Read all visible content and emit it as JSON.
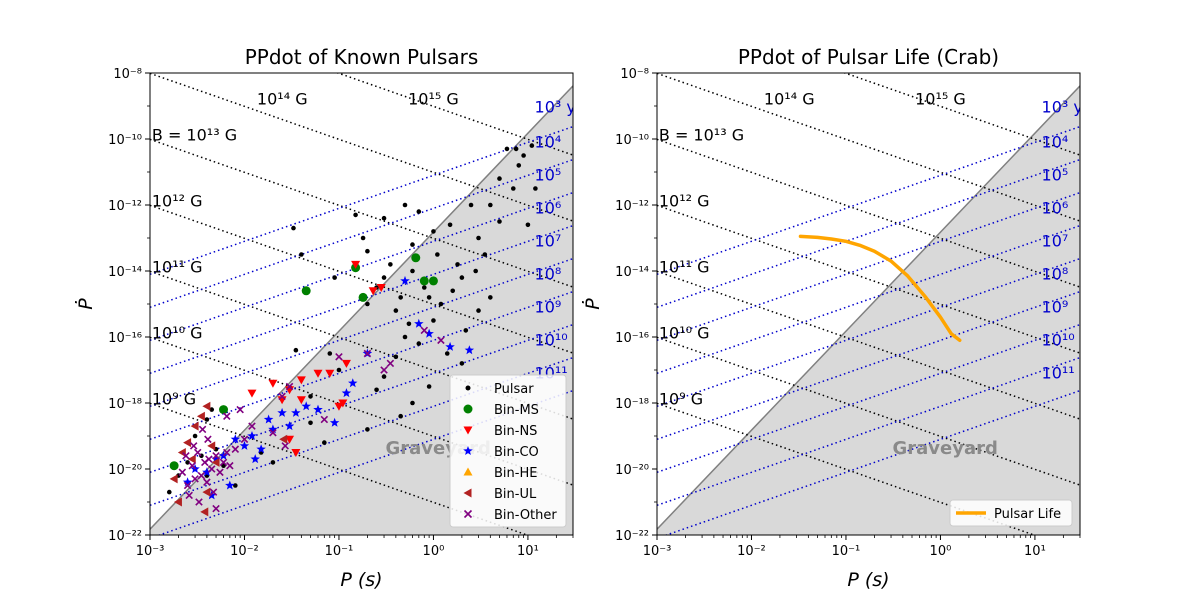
{
  "chart_data": [
    {
      "type": "scatter",
      "title": "PPdot of Known Pulsars",
      "xlabel": "P (s)",
      "ylabel": "Ṗ",
      "xscale": "log",
      "yscale": "log",
      "xlim": [
        0.001,
        30
      ],
      "ylim": [
        1e-22,
        1e-08
      ],
      "x_tick_labels": [
        "10⁻³",
        "10⁻²",
        "10⁻¹",
        "10⁰",
        "10¹"
      ],
      "y_tick_labels": [
        "10⁻²²",
        "10⁻²⁰",
        "10⁻¹⁸",
        "10⁻¹⁶",
        "10⁻¹⁴",
        "10⁻¹²",
        "10⁻¹⁰",
        "10⁻⁸"
      ],
      "region_label": "Graveyard",
      "legend_position": "lower right",
      "field_lines_G": [
        1000000000.0,
        10000000000.0,
        100000000000.0,
        1000000000000.0,
        10000000000000.0,
        100000000000000.0,
        1000000000000000.0
      ],
      "field_labels": [
        "10⁹ G",
        "10¹⁰ G",
        "10¹¹ G",
        "10¹² G",
        "B = 10¹³ G",
        "10¹⁴ G",
        "10¹⁵ G"
      ],
      "age_lines_yr": [
        1000.0,
        10000.0,
        100000.0,
        1000000.0,
        10000000.0,
        100000000.0,
        1000000000.0,
        10000000000.0,
        100000000000.0
      ],
      "age_labels": [
        "10³ yr",
        "10⁴",
        "10⁵",
        "10⁶",
        "10⁷",
        "10⁸",
        "10⁹",
        "10¹⁰",
        "10¹¹"
      ],
      "series": [
        {
          "name": "Pulsar",
          "marker": "circle",
          "color": "#000000",
          "points": [
            [
              0.005,
              -19.4
            ],
            [
              0.04,
              -13.5
            ],
            [
              0.09,
              -14.2
            ],
            [
              0.033,
              -12.7
            ],
            [
              0.15,
              -12.3
            ],
            [
              0.18,
              -13
            ],
            [
              0.3,
              -12.4
            ],
            [
              0.5,
              -12
            ],
            [
              0.7,
              -12.2
            ],
            [
              1,
              -12.8
            ],
            [
              1.5,
              -12.6
            ],
            [
              2.5,
              -12
            ],
            [
              3,
              -13
            ],
            [
              5,
              -12.5
            ],
            [
              7,
              -11.5
            ],
            [
              8,
              -10.8
            ],
            [
              6,
              -10.3
            ],
            [
              9,
              -10.5
            ],
            [
              5,
              -11.2
            ],
            [
              4,
              -12
            ],
            [
              10,
              -12.6
            ],
            [
              12,
              -11.5
            ],
            [
              0.6,
              -14
            ],
            [
              0.8,
              -14.5
            ],
            [
              1.2,
              -15
            ],
            [
              2,
              -14.2
            ],
            [
              3,
              -15.2
            ],
            [
              4,
              -14.8
            ],
            [
              0.4,
              -15.2
            ],
            [
              0.5,
              -16
            ],
            [
              0.7,
              -16.2
            ],
            [
              1,
              -15.5
            ],
            [
              1.4,
              -16.5
            ],
            [
              2.2,
              -15.8
            ],
            [
              2,
              -16.8
            ],
            [
              0.35,
              -13.8
            ],
            [
              0.25,
              -14.5
            ],
            [
              0.2,
              -15
            ],
            [
              0.3,
              -14.2
            ],
            [
              0.6,
              -13.2
            ],
            [
              1.1,
              -13.5
            ],
            [
              1.8,
              -13.8
            ],
            [
              0.9,
              -14.8
            ],
            [
              0.45,
              -14.8
            ],
            [
              0.55,
              -15.6
            ],
            [
              1.6,
              -14.6
            ],
            [
              2.8,
              -14
            ],
            [
              3.5,
              -13.5
            ],
            [
              0.08,
              -16.5
            ],
            [
              0.05,
              -17.8
            ],
            [
              0.3,
              -17.2
            ],
            [
              0.4,
              -16.6
            ],
            [
              0.2,
              -18.8
            ],
            [
              0.25,
              -17.6
            ],
            [
              0.45,
              -18.4
            ],
            [
              0.6,
              -18
            ],
            [
              0.9,
              -17.5
            ],
            [
              0.0016,
              -20.7
            ],
            [
              0.002,
              -20.2
            ],
            [
              0.0025,
              -19.8
            ],
            [
              0.003,
              -20
            ],
            [
              0.004,
              -20.2
            ],
            [
              0.0035,
              -19.6
            ],
            [
              0.003,
              -19
            ],
            [
              0.006,
              -19.9
            ],
            [
              0.008,
              -20.5
            ],
            [
              0.02,
              -19.8
            ],
            [
              0.015,
              -19.5
            ],
            [
              0.1,
              -17
            ],
            [
              0.035,
              -16.4
            ],
            [
              0.2,
              -13.4
            ],
            [
              7.5,
              -10.3
            ],
            [
              11,
              -10.2
            ],
            [
              0.05,
              -18.6
            ],
            [
              0.07,
              -19.2
            ],
            [
              0.004,
              -18.5
            ],
            [
              0.0045,
              -18.2
            ]
          ]
        },
        {
          "name": "Bin-MS",
          "marker": "circle-large",
          "color": "#008000",
          "points": [
            [
              0.045,
              -14.6
            ],
            [
              0.15,
              -13.9
            ],
            [
              0.65,
              -13.6
            ],
            [
              0.8,
              -14.3
            ],
            [
              1.0,
              -14.3
            ],
            [
              0.18,
              -14.8
            ],
            [
              0.0018,
              -19.9
            ],
            [
              0.006,
              -18.2
            ]
          ]
        },
        {
          "name": "Bin-NS",
          "marker": "triangle-down",
          "color": "#ff0000",
          "points": [
            [
              0.15,
              -13.8
            ],
            [
              0.23,
              -14.6
            ],
            [
              0.28,
              -14.5
            ],
            [
              0.12,
              -16.8
            ],
            [
              0.06,
              -17.1
            ],
            [
              0.08,
              -17.1
            ],
            [
              0.04,
              -17.3
            ],
            [
              0.03,
              -17.6
            ],
            [
              0.02,
              -17.4
            ],
            [
              0.012,
              -17.7
            ],
            [
              0.025,
              -17.9
            ],
            [
              0.04,
              -17.9
            ],
            [
              0.1,
              -18.1
            ],
            [
              0.11,
              -18
            ],
            [
              0.03,
              -19.1
            ],
            [
              0.035,
              -19.5
            ]
          ]
        },
        {
          "name": "Bin-CO",
          "marker": "star",
          "color": "#0000ff",
          "points": [
            [
              0.5,
              -14.3
            ],
            [
              0.003,
              -20
            ],
            [
              0.004,
              -20.1
            ],
            [
              0.005,
              -19.7
            ],
            [
              0.006,
              -19.6
            ],
            [
              0.008,
              -19.1
            ],
            [
              0.01,
              -19.3
            ],
            [
              0.012,
              -19
            ],
            [
              0.015,
              -19.4
            ],
            [
              0.02,
              -18.8
            ],
            [
              0.025,
              -18.3
            ],
            [
              0.03,
              -18.7
            ],
            [
              0.045,
              -18.1
            ],
            [
              0.06,
              -18.2
            ],
            [
              0.12,
              -17.7
            ],
            [
              0.14,
              -17.4
            ],
            [
              0.2,
              -16.5
            ],
            [
              0.007,
              -20.5
            ],
            [
              0.0045,
              -20.8
            ],
            [
              0.0025,
              -20.4
            ],
            [
              0.013,
              -19.7
            ],
            [
              0.018,
              -18.5
            ],
            [
              0.035,
              -18.3
            ],
            [
              0.09,
              -18.6
            ],
            [
              0.7,
              -15.6
            ],
            [
              0.9,
              -15.9
            ],
            [
              1.5,
              -16.3
            ],
            [
              2.4,
              -16.4
            ]
          ]
        },
        {
          "name": "Bin-HE",
          "marker": "triangle-up",
          "color": "#ffa500",
          "points": []
        },
        {
          "name": "Bin-UL",
          "marker": "triangle-left",
          "color": "#b22222",
          "points": [
            [
              0.0018,
              -20.3
            ],
            [
              0.0022,
              -19.5
            ],
            [
              0.0025,
              -19.2
            ],
            [
              0.0028,
              -19.7
            ],
            [
              0.003,
              -18.7
            ],
            [
              0.0035,
              -18.4
            ],
            [
              0.004,
              -18.1
            ],
            [
              0.004,
              -20.7
            ],
            [
              0.002,
              -21
            ],
            [
              0.0045,
              -19.3
            ],
            [
              0.005,
              -19.8
            ],
            [
              0.026,
              -19.1
            ],
            [
              0.0038,
              -21.3
            ]
          ]
        },
        {
          "name": "Bin-Other",
          "marker": "x",
          "color": "#800080",
          "points": [
            [
              0.0022,
              -20.1
            ],
            [
              0.0025,
              -20.5
            ],
            [
              0.0028,
              -19.9
            ],
            [
              0.003,
              -20.3
            ],
            [
              0.0032,
              -19.5
            ],
            [
              0.0035,
              -20.2
            ],
            [
              0.0038,
              -19.8
            ],
            [
              0.004,
              -20.4
            ],
            [
              0.0042,
              -19.7
            ],
            [
              0.0045,
              -20
            ],
            [
              0.005,
              -19.6
            ],
            [
              0.0055,
              -20.1
            ],
            [
              0.006,
              -19.8
            ],
            [
              0.0065,
              -19.5
            ],
            [
              0.007,
              -19.9
            ],
            [
              0.008,
              -19.4
            ],
            [
              0.01,
              -19.1
            ],
            [
              0.012,
              -18.7
            ],
            [
              0.0026,
              -20.8
            ],
            [
              0.0033,
              -21
            ],
            [
              0.0047,
              -20.7
            ],
            [
              0.005,
              -21.2
            ],
            [
              0.0036,
              -18.8
            ],
            [
              0.0065,
              -18.4
            ],
            [
              0.009,
              -18.2
            ],
            [
              0.025,
              -17.8
            ],
            [
              0.03,
              -17.5
            ],
            [
              0.02,
              -18.9
            ],
            [
              0.027,
              -19.3
            ],
            [
              0.07,
              -18.5
            ],
            [
              0.1,
              -16.6
            ],
            [
              0.2,
              -16.5
            ],
            [
              0.3,
              -17
            ],
            [
              0.35,
              -16.8
            ],
            [
              0.8,
              -15.8
            ],
            [
              1.2,
              -16.1
            ],
            [
              0.0029,
              -19.3
            ],
            [
              0.0041,
              -19.1
            ],
            [
              0.0024,
              -19.6
            ]
          ]
        }
      ]
    },
    {
      "type": "line",
      "title": "PPdot of Pulsar Life (Crab)",
      "xlabel": "P (s)",
      "ylabel": "Ṗ",
      "xscale": "log",
      "yscale": "log",
      "xlim": [
        0.001,
        30
      ],
      "ylim": [
        1e-22,
        1e-08
      ],
      "x_tick_labels": [
        "10⁻³",
        "10⁻²",
        "10⁻¹",
        "10⁰",
        "10¹"
      ],
      "y_tick_labels": [
        "10⁻²²",
        "10⁻²⁰",
        "10⁻¹⁸",
        "10⁻¹⁶",
        "10⁻¹⁴",
        "10⁻¹²",
        "10⁻¹⁰",
        "10⁻⁸"
      ],
      "region_label": "Graveyard",
      "legend_position": "lower right",
      "field_lines_G": [
        1000000000.0,
        10000000000.0,
        100000000000.0,
        1000000000000.0,
        10000000000000.0,
        100000000000000.0,
        1000000000000000.0
      ],
      "field_labels": [
        "10⁹ G",
        "10¹⁰ G",
        "10¹¹ G",
        "10¹² G",
        "B = 10¹³ G",
        "10¹⁴ G",
        "10¹⁵ G"
      ],
      "age_lines_yr": [
        1000.0,
        10000.0,
        100000.0,
        1000000.0,
        10000000.0,
        100000000.0,
        1000000000.0,
        10000000000.0,
        100000000000.0
      ],
      "age_labels": [
        "10³ yr",
        "10⁴",
        "10⁵",
        "10⁶",
        "10⁷",
        "10⁸",
        "10⁹",
        "10¹⁰",
        "10¹¹"
      ],
      "series": [
        {
          "name": "Pulsar Life",
          "color": "#ffa500",
          "points": [
            [
              0.033,
              -12.95
            ],
            [
              0.05,
              -12.98
            ],
            [
              0.07,
              -13.03
            ],
            [
              0.1,
              -13.1
            ],
            [
              0.14,
              -13.22
            ],
            [
              0.2,
              -13.4
            ],
            [
              0.3,
              -13.7
            ],
            [
              0.45,
              -14.15
            ],
            [
              0.7,
              -14.8
            ],
            [
              1.0,
              -15.4
            ],
            [
              1.3,
              -15.9
            ],
            [
              1.6,
              -16.1
            ]
          ]
        }
      ]
    }
  ]
}
